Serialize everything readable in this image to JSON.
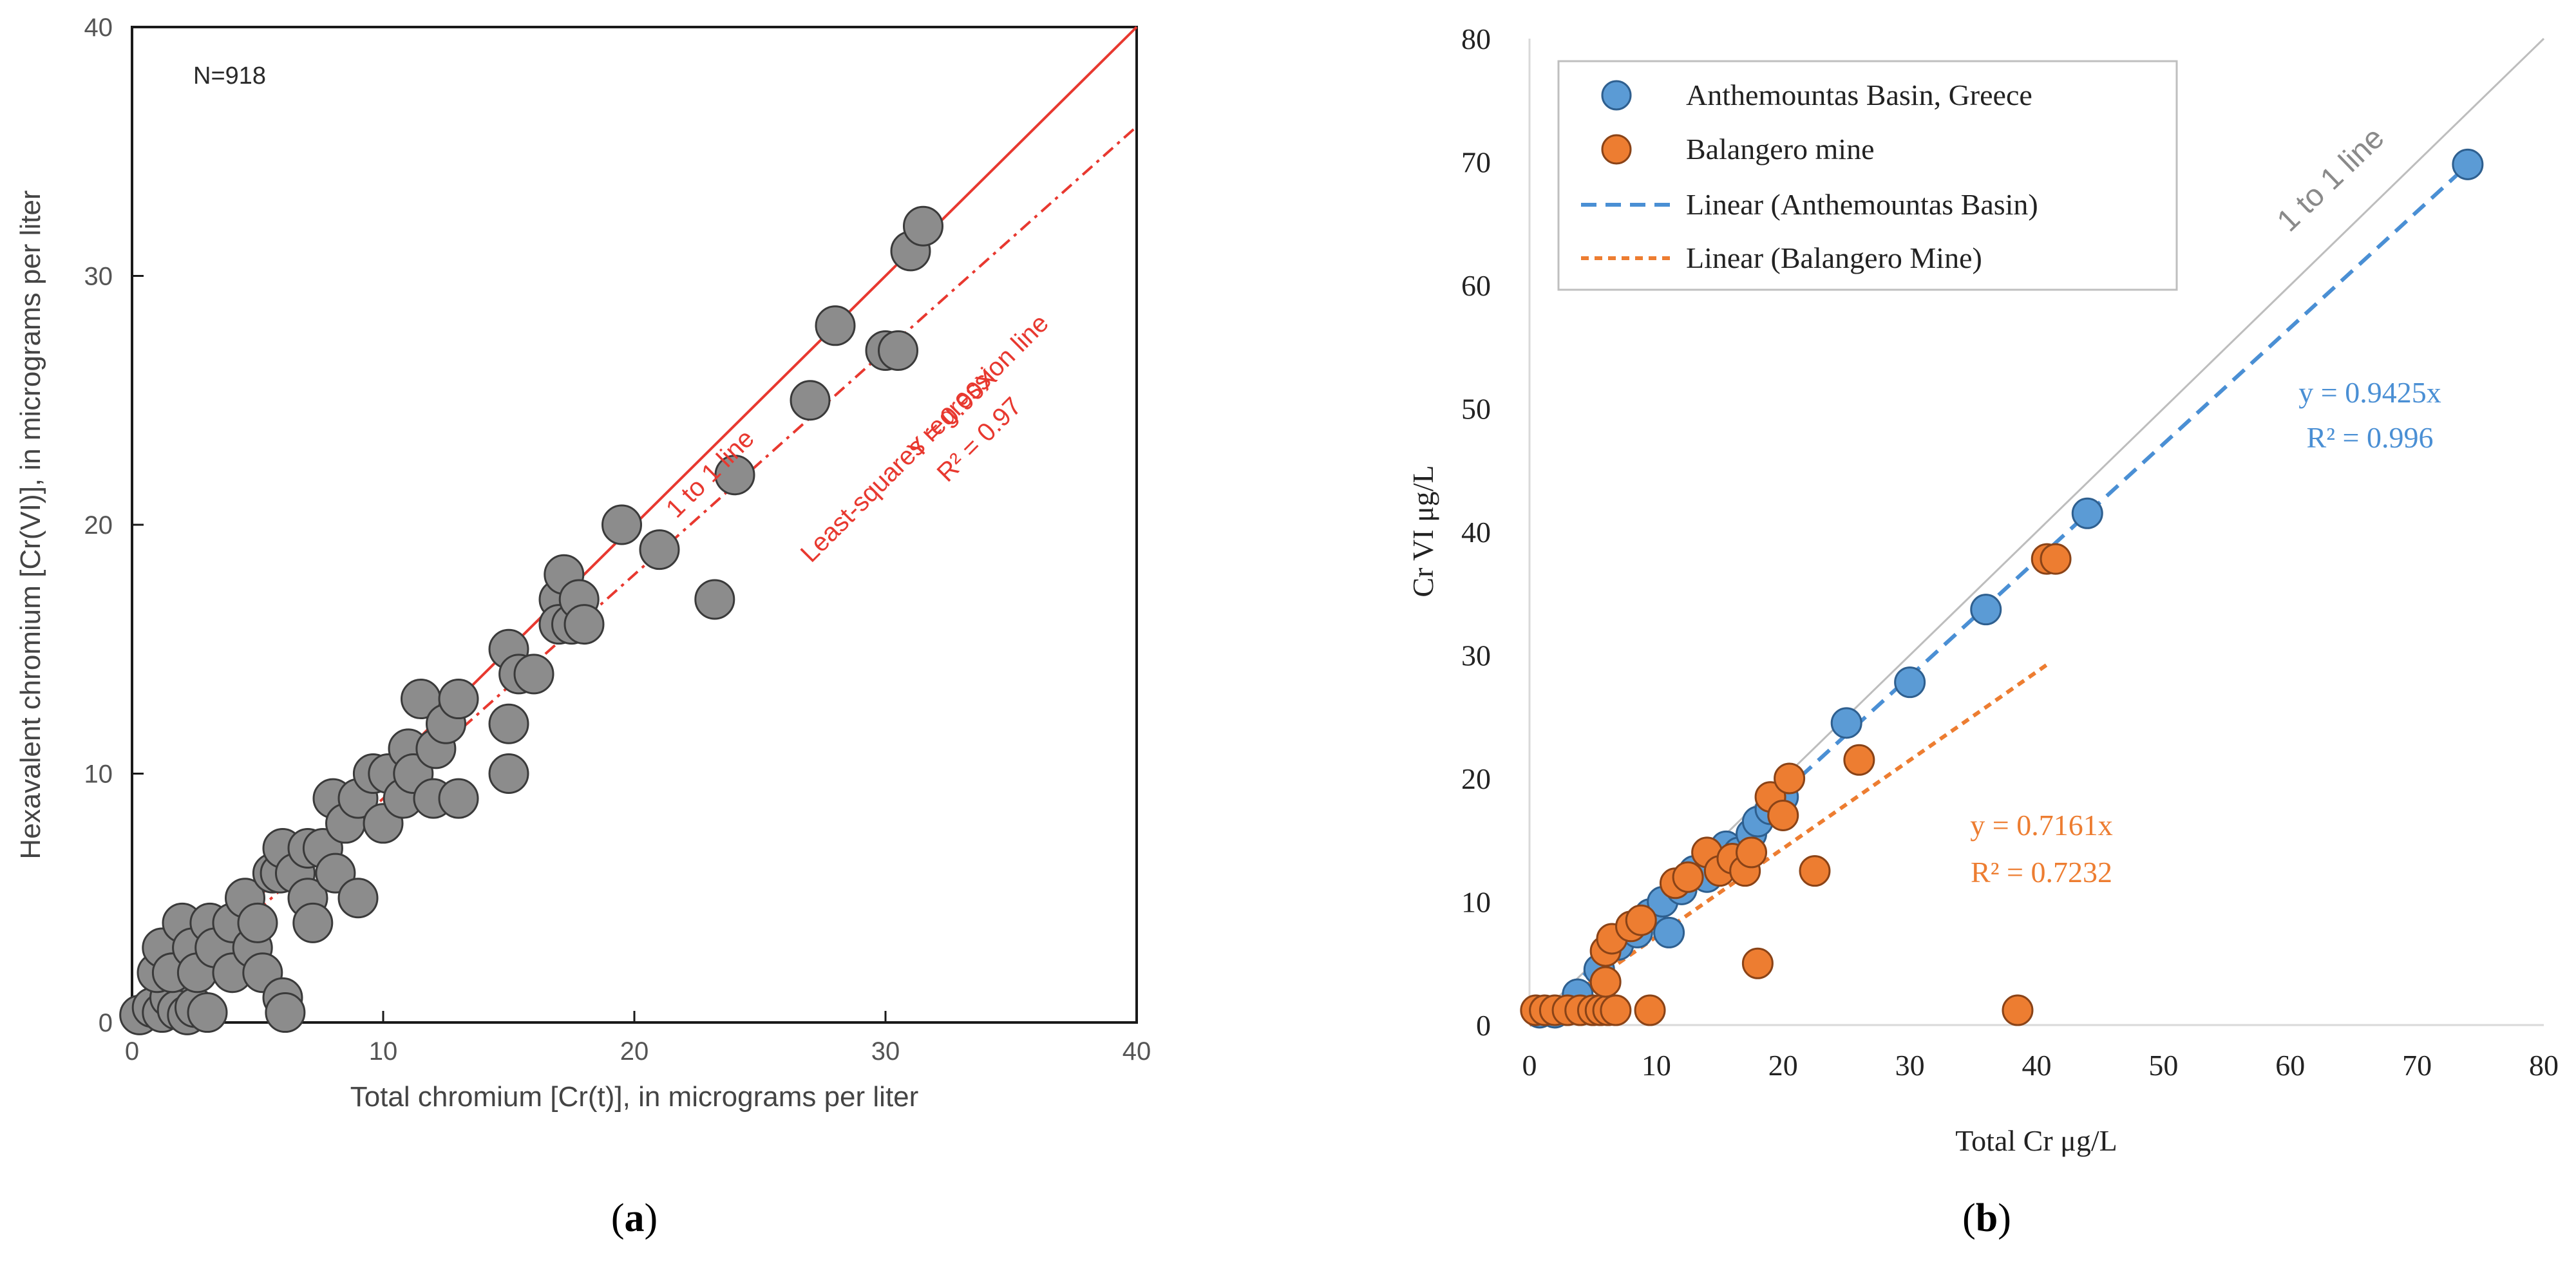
{
  "colors": {
    "a_point_fill": "#8c8c8c",
    "a_point_stroke": "#3a3a3a",
    "a_red": "#e8382f",
    "a_label_gray": "#555555",
    "b_blue": "#5b9bd5",
    "b_blue_stroke": "#2e5f8f",
    "b_orange": "#ed7d31",
    "b_orange_stroke": "#8a4317",
    "b_trend_blue": "#4a8fd4",
    "b_trend_orange": "#ed7d31",
    "b_identity": "#bdbdbd",
    "b_label": "#222222",
    "b_identity_label": "#8a8a8a"
  },
  "chart_data": [
    {
      "type": "scatter",
      "panel_label": "a",
      "n_label": "N=918",
      "xlabel": "Total chromium [Cr(t)], in micrograms per liter",
      "ylabel": "Hexavalent chromium [Cr(VI)], in micrograms per liter",
      "xlim": [
        0,
        40
      ],
      "ylim": [
        0,
        40
      ],
      "xticks": [
        "0",
        "10",
        "20",
        "30",
        "40"
      ],
      "yticks": [
        "0",
        "10",
        "20",
        "30",
        "40"
      ],
      "lines": [
        {
          "name": "identity",
          "label": "1 to 1 line",
          "slope": 1.0,
          "style": "solid"
        },
        {
          "name": "regression",
          "label": "Least-squares regression line",
          "slope": 0.9,
          "style": "dashed"
        }
      ],
      "regression_equation": "Y = 0.90X",
      "regression_r2": "R² = 0.97",
      "points": [
        [
          0.3,
          0.3
        ],
        [
          0.8,
          0.6
        ],
        [
          1.2,
          0.4
        ],
        [
          1.5,
          1.0
        ],
        [
          1.8,
          0.5
        ],
        [
          2.2,
          0.3
        ],
        [
          2.5,
          0.6
        ],
        [
          3.0,
          0.4
        ],
        [
          1.0,
          2.0
        ],
        [
          1.2,
          3.0
        ],
        [
          1.6,
          2.0
        ],
        [
          2.0,
          4.0
        ],
        [
          2.4,
          3.0
        ],
        [
          2.6,
          2.0
        ],
        [
          3.1,
          4.0
        ],
        [
          3.3,
          3.0
        ],
        [
          4.0,
          4.0
        ],
        [
          4.0,
          2.0
        ],
        [
          4.5,
          5.0
        ],
        [
          4.8,
          3.0
        ],
        [
          5.0,
          4.0
        ],
        [
          5.2,
          2.0
        ],
        [
          5.6,
          6.0
        ],
        [
          5.9,
          6.0
        ],
        [
          6.0,
          7.0
        ],
        [
          6.0,
          1.0
        ],
        [
          6.1,
          0.4
        ],
        [
          6.5,
          6.0
        ],
        [
          7.0,
          5.0
        ],
        [
          7.0,
          7.0
        ],
        [
          7.2,
          4.0
        ],
        [
          7.6,
          7.0
        ],
        [
          8.0,
          9.0
        ],
        [
          8.1,
          6.0
        ],
        [
          8.5,
          8.0
        ],
        [
          9.0,
          5.0
        ],
        [
          9.0,
          9.0
        ],
        [
          9.6,
          10.0
        ],
        [
          10.0,
          8.0
        ],
        [
          10.2,
          10.0
        ],
        [
          10.8,
          9.0
        ],
        [
          11.0,
          11.0
        ],
        [
          11.2,
          10.0
        ],
        [
          11.5,
          13.0
        ],
        [
          12.0,
          9.0
        ],
        [
          12.1,
          11.0
        ],
        [
          12.5,
          12.0
        ],
        [
          13.0,
          13.0
        ],
        [
          13.0,
          9.0
        ],
        [
          15.0,
          15.0
        ],
        [
          15.0,
          12.0
        ],
        [
          15.0,
          10.0
        ],
        [
          15.4,
          14.0
        ],
        [
          16.0,
          14.0
        ],
        [
          17.0,
          17.0
        ],
        [
          17.0,
          16.0
        ],
        [
          17.2,
          18.0
        ],
        [
          17.5,
          16.0
        ],
        [
          17.8,
          17.0
        ],
        [
          18.0,
          16.0
        ],
        [
          19.5,
          20.0
        ],
        [
          21.0,
          19.0
        ],
        [
          23.2,
          17.0
        ],
        [
          24.0,
          22.0
        ],
        [
          27.0,
          25.0
        ],
        [
          28.0,
          28.0
        ],
        [
          30.0,
          27.0
        ],
        [
          30.5,
          27.0
        ],
        [
          31.0,
          31.0
        ],
        [
          31.5,
          32.0
        ]
      ]
    },
    {
      "type": "scatter",
      "panel_label": "b",
      "xlabel": "Total Cr μg/L",
      "ylabel": "Cr VI μg/L",
      "xlim": [
        0,
        80
      ],
      "ylim": [
        0,
        80
      ],
      "xticks": [
        "0",
        "10",
        "20",
        "30",
        "40",
        "50",
        "60",
        "70",
        "80"
      ],
      "yticks": [
        "0",
        "10",
        "20",
        "30",
        "40",
        "50",
        "60",
        "70",
        "80"
      ],
      "identity_label": "1 to 1 line",
      "legend": [
        {
          "label": "Anthemountas Basin, Greece",
          "kind": "marker",
          "color": "blue"
        },
        {
          "label": "Balangero mine",
          "kind": "marker",
          "color": "orange"
        },
        {
          "label": "Linear (Anthemountas Basin)",
          "kind": "dashed",
          "color": "blue"
        },
        {
          "label": "Linear (Balangero Mine)",
          "kind": "dashed",
          "color": "orange"
        }
      ],
      "series": [
        {
          "name": "Anthemountas Basin, Greece",
          "trend_slope": 0.9425,
          "trend_x_range": [
            0,
            74
          ],
          "equation": "y = 0.9425x",
          "r2": "R² = 0.996",
          "points": [
            [
              0.8,
              1.0
            ],
            [
              2.0,
              1.0
            ],
            [
              3.8,
              2.5
            ],
            [
              5.5,
              4.5
            ],
            [
              7.0,
              6.5
            ],
            [
              8.5,
              7.5
            ],
            [
              9.5,
              9.0
            ],
            [
              10.5,
              10.0
            ],
            [
              11.0,
              7.5
            ],
            [
              12.0,
              11.0
            ],
            [
              13.0,
              12.5
            ],
            [
              14.0,
              12.0
            ],
            [
              15.0,
              13.5
            ],
            [
              15.5,
              14.5
            ],
            [
              16.5,
              14.0
            ],
            [
              17.5,
              15.5
            ],
            [
              18.0,
              16.5
            ],
            [
              19.0,
              17.5
            ],
            [
              20.0,
              18.5
            ],
            [
              25.0,
              24.5
            ],
            [
              30.0,
              27.8
            ],
            [
              36.0,
              33.7
            ],
            [
              44.0,
              41.5
            ],
            [
              74.0,
              69.8
            ]
          ]
        },
        {
          "name": "Balangero mine",
          "trend_slope": 0.7161,
          "trend_x_range": [
            0,
            41
          ],
          "equation": "y = 0.7161x",
          "r2": "R² = 0.7232",
          "points": [
            [
              0.5,
              1.2
            ],
            [
              1.2,
              1.2
            ],
            [
              2.0,
              1.2
            ],
            [
              3.0,
              1.2
            ],
            [
              4.0,
              1.2
            ],
            [
              5.0,
              1.2
            ],
            [
              5.6,
              1.2
            ],
            [
              6.2,
              1.2
            ],
            [
              6.8,
              1.2
            ],
            [
              9.5,
              1.2
            ],
            [
              38.5,
              1.2
            ],
            [
              6.0,
              3.5
            ],
            [
              6.0,
              6.0
            ],
            [
              6.5,
              7.0
            ],
            [
              8.0,
              8.0
            ],
            [
              8.8,
              8.5
            ],
            [
              11.5,
              11.5
            ],
            [
              12.5,
              12.0
            ],
            [
              14.0,
              14.0
            ],
            [
              15.0,
              12.5
            ],
            [
              16.0,
              13.5
            ],
            [
              17.0,
              12.5
            ],
            [
              17.5,
              14.0
            ],
            [
              18.0,
              5.0
            ],
            [
              19.0,
              18.5
            ],
            [
              20.0,
              17.0
            ],
            [
              20.5,
              20.0
            ],
            [
              22.5,
              12.5
            ],
            [
              26.0,
              21.5
            ],
            [
              40.8,
              37.8
            ],
            [
              41.5,
              37.8
            ]
          ]
        }
      ]
    }
  ]
}
